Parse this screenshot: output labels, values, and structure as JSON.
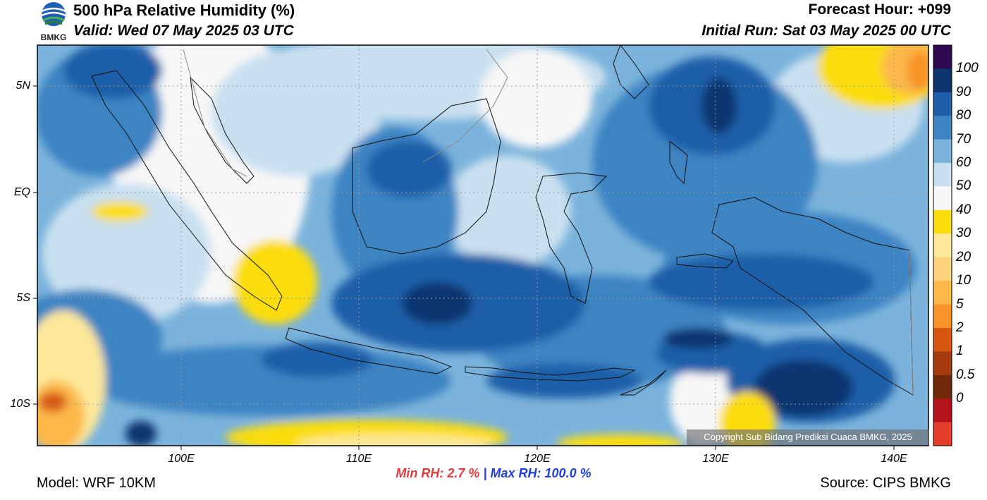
{
  "header": {
    "title": "500 hPa Relative Humidity (%)",
    "valid": "Valid: Wed 07 May 2025 03 UTC",
    "forecast_hour": "Forecast Hour: +099",
    "initial_run": "Initial Run: Sat 03 May 2025 00 UTC"
  },
  "logo": {
    "text": "BMKG"
  },
  "axes": {
    "lat_labels": [
      "5N",
      "EQ",
      "5S",
      "10S"
    ],
    "lon_labels": [
      "100E",
      "110E",
      "120E",
      "130E",
      "140E"
    ]
  },
  "colorbar": {
    "labels": [
      "100",
      "90",
      "80",
      "70",
      "60",
      "50",
      "40",
      "30",
      "20",
      "10",
      "5",
      "2",
      "1",
      "0.5",
      "0"
    ],
    "colors": [
      "#2e0a52",
      "#0e3570",
      "#1f5ea8",
      "#3d84c3",
      "#7bb3dc",
      "#c9e0f0",
      "#f7f7f7",
      "#fbdd0a",
      "#fde89a",
      "#fdd47c",
      "#fcb848",
      "#f89428",
      "#d7560e",
      "#a53a0d",
      "#6f2a0a",
      "#b3141c",
      "#e63c2c"
    ]
  },
  "stats": {
    "min_label": "Min RH:",
    "min_value": "2.7 %",
    "separator": "|",
    "max_label": "Max RH:",
    "max_value": "100.0 %"
  },
  "footer": {
    "model": "Model: WRF 10KM",
    "source": "Source: CIPS BMKG",
    "copyright": "Copyright Sub Bidang Prediksi Cuaca BMKG, 2025"
  }
}
